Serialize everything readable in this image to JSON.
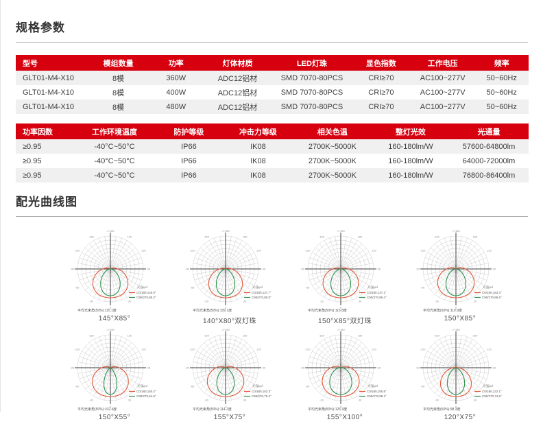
{
  "page": {
    "accent_color": "#d6000f",
    "stripe_color": "#f0f0f0",
    "curve_c0_color": "#e05a3a",
    "curve_c90_color": "#2f9150"
  },
  "sections": {
    "spec": {
      "title": "规格参数"
    },
    "curves": {
      "title": "配光曲线图"
    }
  },
  "spec_table_1": {
    "headers": [
      "型号",
      "模组数量",
      "功率",
      "灯体材质",
      "LED灯珠",
      "显色指数",
      "工作电压",
      "频率"
    ],
    "rows": [
      [
        "GLT01-M4-X10",
        "8模",
        "360W",
        "ADC12铝材",
        "SMD 7070-80PCS",
        "CRI≥70",
        "AC100~277V",
        "50~60Hz"
      ],
      [
        "GLT01-M4-X10",
        "8模",
        "400W",
        "ADC12铝材",
        "SMD 7070-80PCS",
        "CRI≥70",
        "AC100~277V",
        "50~60Hz"
      ],
      [
        "GLT01-M4-X10",
        "8模",
        "480W",
        "ADC12铝材",
        "SMD 7070-80PCS",
        "CRI≥70",
        "AC100~277V",
        "50~60Hz"
      ]
    ]
  },
  "spec_table_2": {
    "headers": [
      "功率因数",
      "工作环境温度",
      "防护等级",
      "冲击力等级",
      "相关色温",
      "整灯光效",
      "光通量"
    ],
    "rows": [
      [
        "≥0.95",
        "-40°C~50°C",
        "IP66",
        "IK08",
        "2700K~5000K",
        "160-180lm/W",
        "57600-64800lm"
      ],
      [
        "≥0.95",
        "-40°C~50°C",
        "IP66",
        "IK08",
        "2700K~5000K",
        "160-180lm/W",
        "64000-72000lm"
      ],
      [
        "≥0.95",
        "-40°C~50°C",
        "IP66",
        "IK08",
        "2700K~5000K",
        "160-180lm/W",
        "76800-86400lm"
      ]
    ]
  },
  "chart_meta": {
    "legend_title": "光强:cd",
    "angle_ticks": [
      "0",
      "30",
      "60",
      "90",
      "120",
      "150"
    ],
    "top_tick": "-/+180"
  },
  "chart_data": [
    {
      "type": "polar_light_distribution",
      "label": "145°X85°",
      "c0_label": "C0/180,145.0°",
      "c90_label": "C90/270,85.2°",
      "avg_label": "平均光束角(50%):115.1度",
      "c0_beam_deg": 145.0,
      "c90_beam_deg": 85.2
    },
    {
      "type": "polar_light_distribution",
      "label": "140°X80°双灯珠",
      "c0_label": "C0/180,137.7°",
      "c90_label": "C90/270,80.5°",
      "avg_label": "平均光束角(50%):109.1度",
      "c0_beam_deg": 137.7,
      "c90_beam_deg": 80.5
    },
    {
      "type": "polar_light_distribution",
      "label": "150°X85°双灯珠",
      "c0_label": "C0/180,147.1°",
      "c90_label": "C90/270,86.4°",
      "avg_label": "平均光束角(50%):116.8度",
      "c0_beam_deg": 147.1,
      "c90_beam_deg": 86.4
    },
    {
      "type": "polar_light_distribution",
      "label": "150°X85°",
      "c0_label": "C0/180,153.3°",
      "c90_label": "C90/270,86.6°",
      "avg_label": "平均光束角(50%):119.9度",
      "c0_beam_deg": 153.3,
      "c90_beam_deg": 86.6
    },
    {
      "type": "polar_light_distribution",
      "label": "150°X55°",
      "c0_label": "C0/180,150.2°",
      "c90_label": "C90/270,54.6°",
      "avg_label": "平均光束角(50%):102.4度",
      "c0_beam_deg": 150.2,
      "c90_beam_deg": 54.6
    },
    {
      "type": "polar_light_distribution",
      "label": "155°X75°",
      "c0_label": "C0/180,153.3°",
      "c90_label": "C90/270,75.2°",
      "avg_label": "平均光束角(50%):114.2度",
      "c0_beam_deg": 153.3,
      "c90_beam_deg": 75.2
    },
    {
      "type": "polar_light_distribution",
      "label": "155°X100°",
      "c0_label": "C0/180,155.8°",
      "c90_label": "C90/270,98.1°",
      "avg_label": "平均光束角(50%):126.9度",
      "c0_beam_deg": 155.8,
      "c90_beam_deg": 98.1
    },
    {
      "type": "polar_light_distribution",
      "label": "120°X75°",
      "c0_label": "C0/180,122.1°",
      "c90_label": "C90/270,74.5°",
      "avg_label": "平均光束角(50%):98.3度",
      "c0_beam_deg": 122.1,
      "c90_beam_deg": 74.5
    }
  ]
}
